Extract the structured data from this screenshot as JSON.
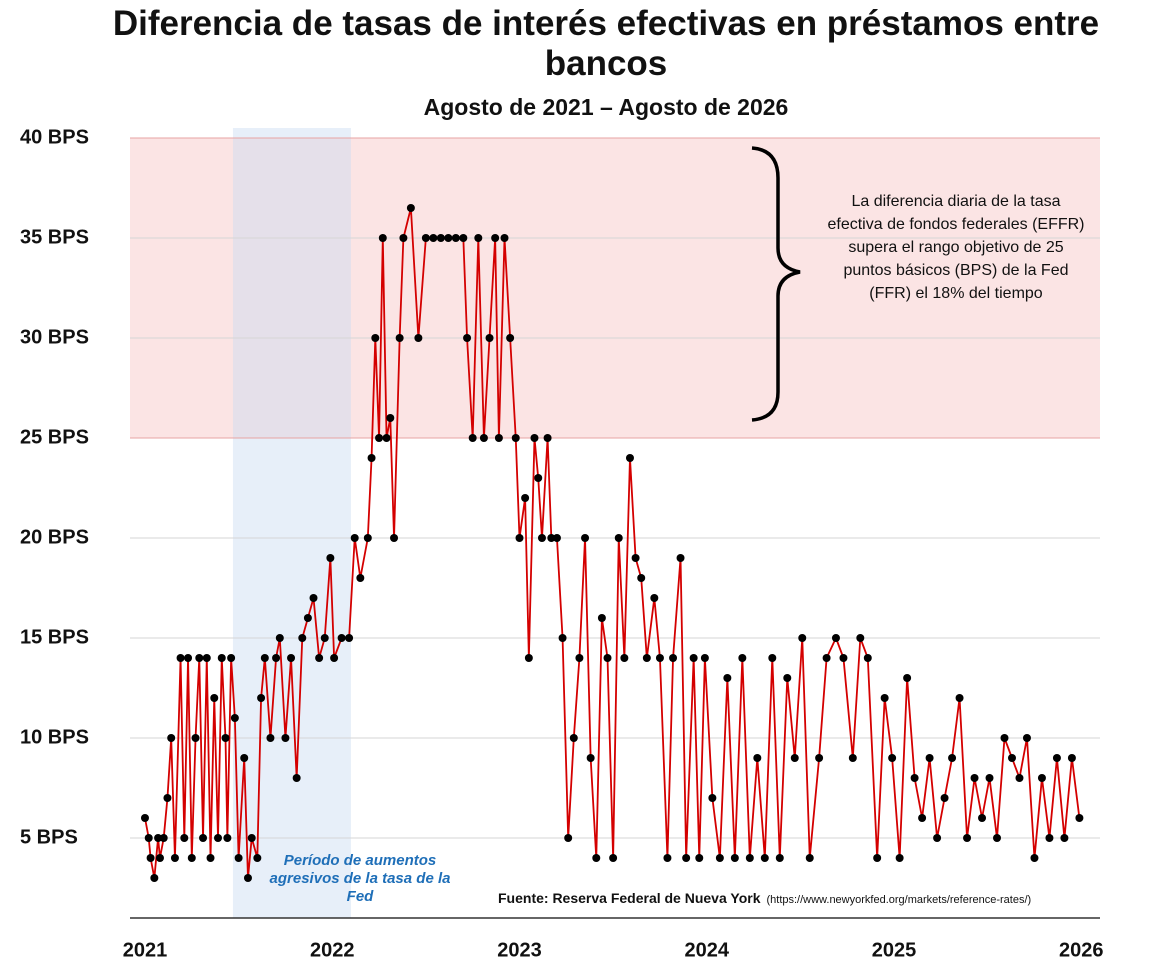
{
  "chart_data": {
    "type": "line",
    "title": "Diferencia de tasas de interés efectivas en préstamos entre bancos",
    "subtitle": "Agosto de 2021 – Agosto de 2026",
    "annotation": "La diferencia diaria de la tasa efectiva de fondos federales (EFFR) supera el rango objetivo de 25 puntos básicos (BPS) de la Fed (FFR) el 18% del tiempo",
    "highlight_label": "Período de aumentos agresivos de la tasa de la Fed",
    "highlight_x": [
      2021.47,
      2022.1
    ],
    "shaded_y": [
      25,
      40
    ],
    "source": "Fuente: Reserva Federal de Nueva York",
    "source_url": "(https://www.newyorkfed.org/markets/reference-rates/)",
    "xlim": [
      2020.92,
      2026.1
    ],
    "xticks": [
      2021,
      2022,
      2023,
      2024,
      2025,
      2026
    ],
    "ylim": [
      1,
      40.5
    ],
    "yticks": [
      {
        "value": 5,
        "label": "5 BPS"
      },
      {
        "value": 10,
        "label": "10 BPS"
      },
      {
        "value": 15,
        "label": "15 BPS"
      },
      {
        "value": 20,
        "label": "20 BPS"
      },
      {
        "value": 25,
        "label": "25 BPS"
      },
      {
        "value": 30,
        "label": "30 BPS"
      },
      {
        "value": 35,
        "label": "35 BPS"
      },
      {
        "value": 40,
        "label": "40 BPS"
      }
    ],
    "grid": true,
    "x": [
      2021.0,
      2021.02,
      2021.03,
      2021.05,
      2021.07,
      2021.08,
      2021.1,
      2021.12,
      2021.14,
      2021.16,
      2021.19,
      2021.21,
      2021.23,
      2021.25,
      2021.27,
      2021.29,
      2021.31,
      2021.33,
      2021.35,
      2021.37,
      2021.39,
      2021.41,
      2021.43,
      2021.44,
      2021.46,
      2021.48,
      2021.5,
      2021.53,
      2021.55,
      2021.57,
      2021.6,
      2021.62,
      2021.64,
      2021.67,
      2021.7,
      2021.72,
      2021.75,
      2021.78,
      2021.81,
      2021.84,
      2021.87,
      2021.9,
      2021.93,
      2021.96,
      2021.99,
      2022.01,
      2022.05,
      2022.09,
      2022.12,
      2022.15,
      2022.19,
      2022.21,
      2022.23,
      2022.25,
      2022.27,
      2022.29,
      2022.31,
      2022.33,
      2022.36,
      2022.38,
      2022.42,
      2022.46,
      2022.5,
      2022.54,
      2022.58,
      2022.62,
      2022.66,
      2022.7,
      2022.72,
      2022.75,
      2022.78,
      2022.81,
      2022.84,
      2022.87,
      2022.89,
      2022.92,
      2022.95,
      2022.98,
      2023.0,
      2023.03,
      2023.05,
      2023.08,
      2023.1,
      2023.12,
      2023.15,
      2023.17,
      2023.2,
      2023.23,
      2023.26,
      2023.29,
      2023.32,
      2023.35,
      2023.38,
      2023.41,
      2023.44,
      2023.47,
      2023.5,
      2023.53,
      2023.56,
      2023.59,
      2023.62,
      2023.65,
      2023.68,
      2023.72,
      2023.75,
      2023.79,
      2023.82,
      2023.86,
      2023.89,
      2023.93,
      2023.96,
      2023.99,
      2024.03,
      2024.07,
      2024.11,
      2024.15,
      2024.19,
      2024.23,
      2024.27,
      2024.31,
      2024.35,
      2024.39,
      2024.43,
      2024.47,
      2024.51,
      2024.55,
      2024.6,
      2024.64,
      2024.69,
      2024.73,
      2024.78,
      2024.82,
      2024.86,
      2024.91,
      2024.95,
      2024.99,
      2025.03,
      2025.07,
      2025.11,
      2025.15,
      2025.19,
      2025.23,
      2025.27,
      2025.31,
      2025.35,
      2025.39,
      2025.43,
      2025.47,
      2025.51,
      2025.55,
      2025.59,
      2025.63,
      2025.67,
      2025.71,
      2025.75,
      2025.79,
      2025.83,
      2025.87,
      2025.91,
      2025.95,
      2025.99
    ],
    "series": [
      {
        "color": "#d40000",
        "marker_color": "#000000",
        "values": [
          6,
          5,
          4,
          3,
          5,
          4,
          5,
          7,
          10,
          4,
          14,
          5,
          14,
          4,
          10,
          14,
          5,
          14,
          4,
          12,
          5,
          14,
          10,
          5,
          14,
          11,
          4,
          9,
          3,
          5,
          4,
          12,
          14,
          10,
          14,
          15,
          10,
          14,
          8,
          15,
          16,
          17,
          14,
          15,
          19,
          14,
          15,
          15,
          20,
          18,
          20,
          24,
          30,
          25,
          35,
          25,
          26,
          20,
          30,
          35,
          36.5,
          30,
          35,
          35,
          35,
          35,
          35,
          35,
          30,
          25,
          35,
          25,
          30,
          35,
          25,
          35,
          30,
          25,
          20,
          22,
          14,
          25,
          23,
          20,
          25,
          20,
          20,
          15,
          5,
          10,
          14,
          20,
          9,
          4,
          16,
          14,
          4,
          20,
          14,
          24,
          19,
          18,
          14,
          17,
          14,
          4,
          14,
          19,
          4,
          14,
          4,
          14,
          7,
          4,
          13,
          4,
          14,
          4,
          9,
          4,
          14,
          4,
          13,
          9,
          15,
          4,
          9,
          14,
          15,
          14,
          9,
          15,
          14,
          4,
          12,
          9,
          4,
          13,
          8,
          6,
          9,
          5,
          7,
          9,
          12,
          5,
          8,
          6,
          8,
          5,
          10,
          9,
          8,
          10,
          4,
          8,
          5,
          9,
          5,
          9,
          6
        ]
      }
    ]
  }
}
